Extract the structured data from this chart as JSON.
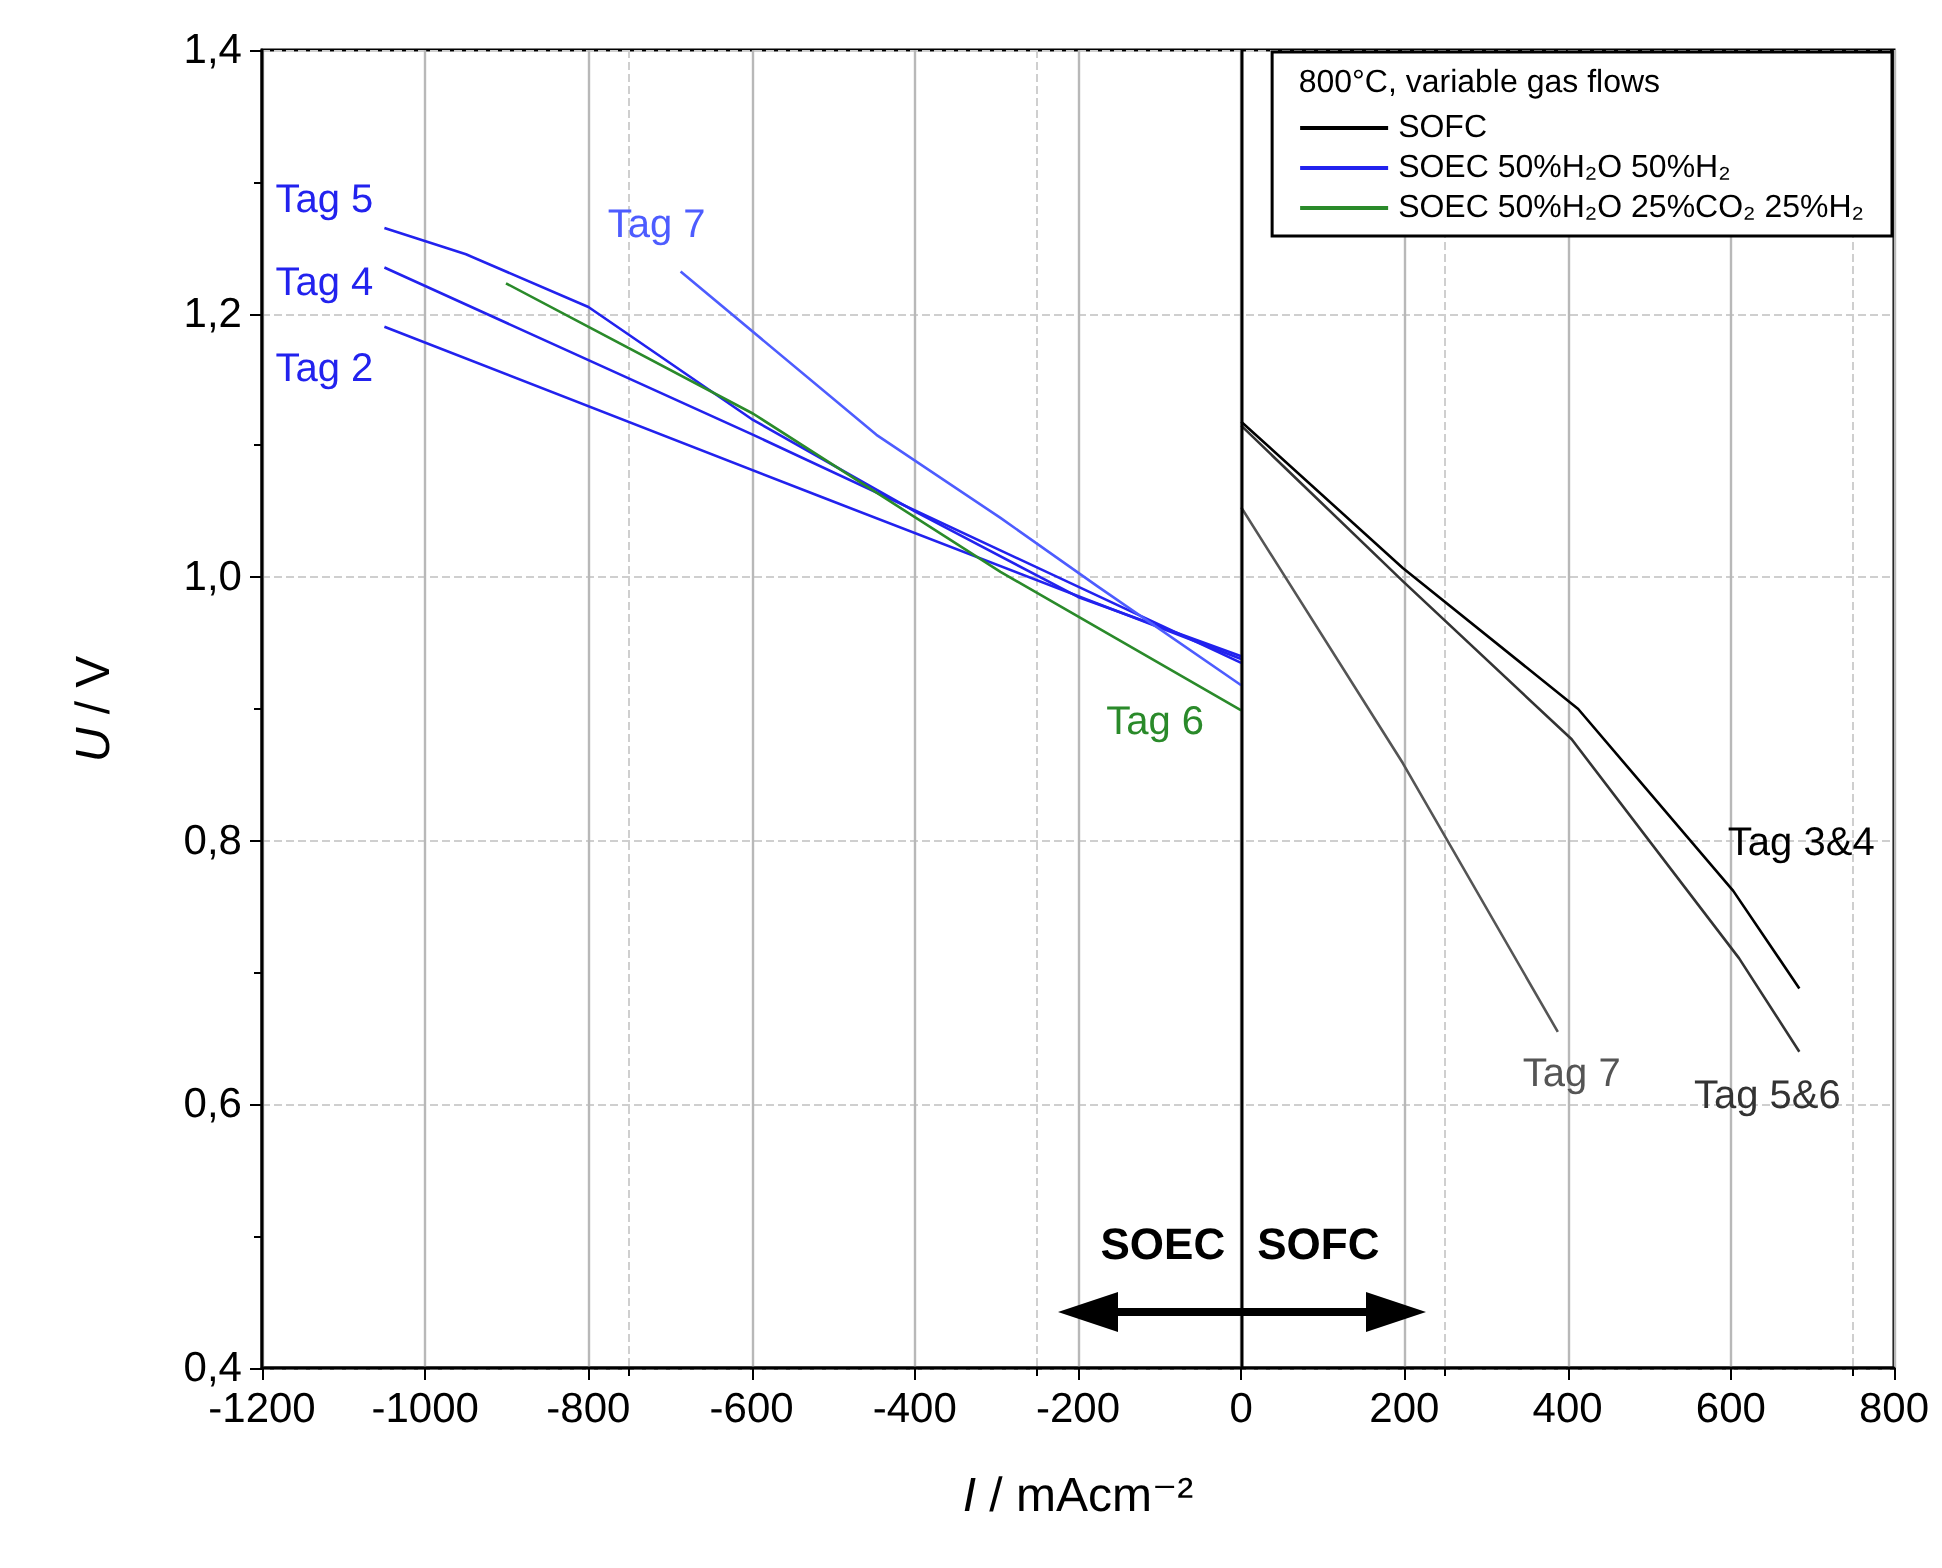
{
  "chart_data": {
    "type": "line",
    "xlabel": "I / mAcm⁻²",
    "ylabel": "U / V",
    "legend_title": "800°C, variable gas flows",
    "legend": "top right",
    "grid": true,
    "xlim": [
      -1200,
      800
    ],
    "xticks": [
      -1200,
      -1000,
      -800,
      -600,
      -400,
      -200,
      0,
      200,
      400,
      600,
      800
    ],
    "ylim": [
      0.4,
      1.4
    ],
    "yticks": [
      {
        "value": 0.4,
        "label": "0,4"
      },
      {
        "value": 0.6,
        "label": "0,6"
      },
      {
        "value": 0.8,
        "label": "0,8"
      },
      {
        "value": 1.0,
        "label": "1,0"
      },
      {
        "value": 1.2,
        "label": "1,2"
      },
      {
        "value": 1.4,
        "label": "1,4"
      }
    ],
    "ref_lines": [
      {
        "axis": "x",
        "value": 0,
        "color": "#000000"
      }
    ],
    "series": [
      {
        "name": "SOFC",
        "color": "#000000",
        "x": [
          0,
          198,
          413,
          603,
          684
        ],
        "values": [
          1.118,
          1.007,
          0.9,
          0.762,
          0.688
        ]
      },
      {
        "color": "#333333",
        "x": [
          0,
          198,
          405,
          610,
          684
        ],
        "values": [
          1.115,
          0.997,
          0.877,
          0.711,
          0.64
        ]
      },
      {
        "color": "#555555",
        "x": [
          0,
          198,
          388
        ],
        "values": [
          1.053,
          0.859,
          0.655
        ]
      },
      {
        "name": "SOEC 50%H₂O 50%H₂",
        "color": "#2222ee",
        "x": [
          -1050,
          -950,
          -800,
          -600,
          -400,
          -200,
          0
        ],
        "values": [
          1.265,
          1.245,
          1.205,
          1.12,
          1.05,
          0.985,
          0.94
        ]
      },
      {
        "color": "#2222ee",
        "x": [
          -1050,
          -598,
          0
        ],
        "values": [
          1.235,
          1.108,
          0.935
        ]
      },
      {
        "color": "#2222ee",
        "x": [
          -1050,
          -515,
          0
        ],
        "values": [
          1.19,
          1.061,
          0.938
        ]
      },
      {
        "color": "#4d5cff",
        "x": [
          -687,
          -447,
          -295,
          -176,
          0
        ],
        "values": [
          1.232,
          1.108,
          1.045,
          0.993,
          0.918
        ]
      },
      {
        "name": "SOEC 50%H₂O 25%CO₂ 25%H₂",
        "color": "#2a8a2a",
        "x": [
          -901,
          -598,
          -295,
          0
        ],
        "values": [
          1.223,
          1.124,
          1.004,
          0.899
        ]
      }
    ],
    "annotations": [
      {
        "text": "Tag 5",
        "x": -1050,
        "y": 1.265
      },
      {
        "text": "Tag 4",
        "x": -1050,
        "y": 1.235
      },
      {
        "text": "Tag 2",
        "x": -1050,
        "y": 1.19
      },
      {
        "text": "Tag 7",
        "x": -687,
        "y": 1.232
      },
      {
        "text": "Tag 6",
        "x": 0,
        "y": 0.899
      },
      {
        "text": "Tag 3&4",
        "x": 603,
        "y": 0.762
      },
      {
        "text": "Tag 7",
        "x": 388,
        "y": 0.655
      },
      {
        "text": "Tag 5&6",
        "x": 684,
        "y": 0.64
      },
      "SOEC",
      "SOFC"
    ]
  }
}
